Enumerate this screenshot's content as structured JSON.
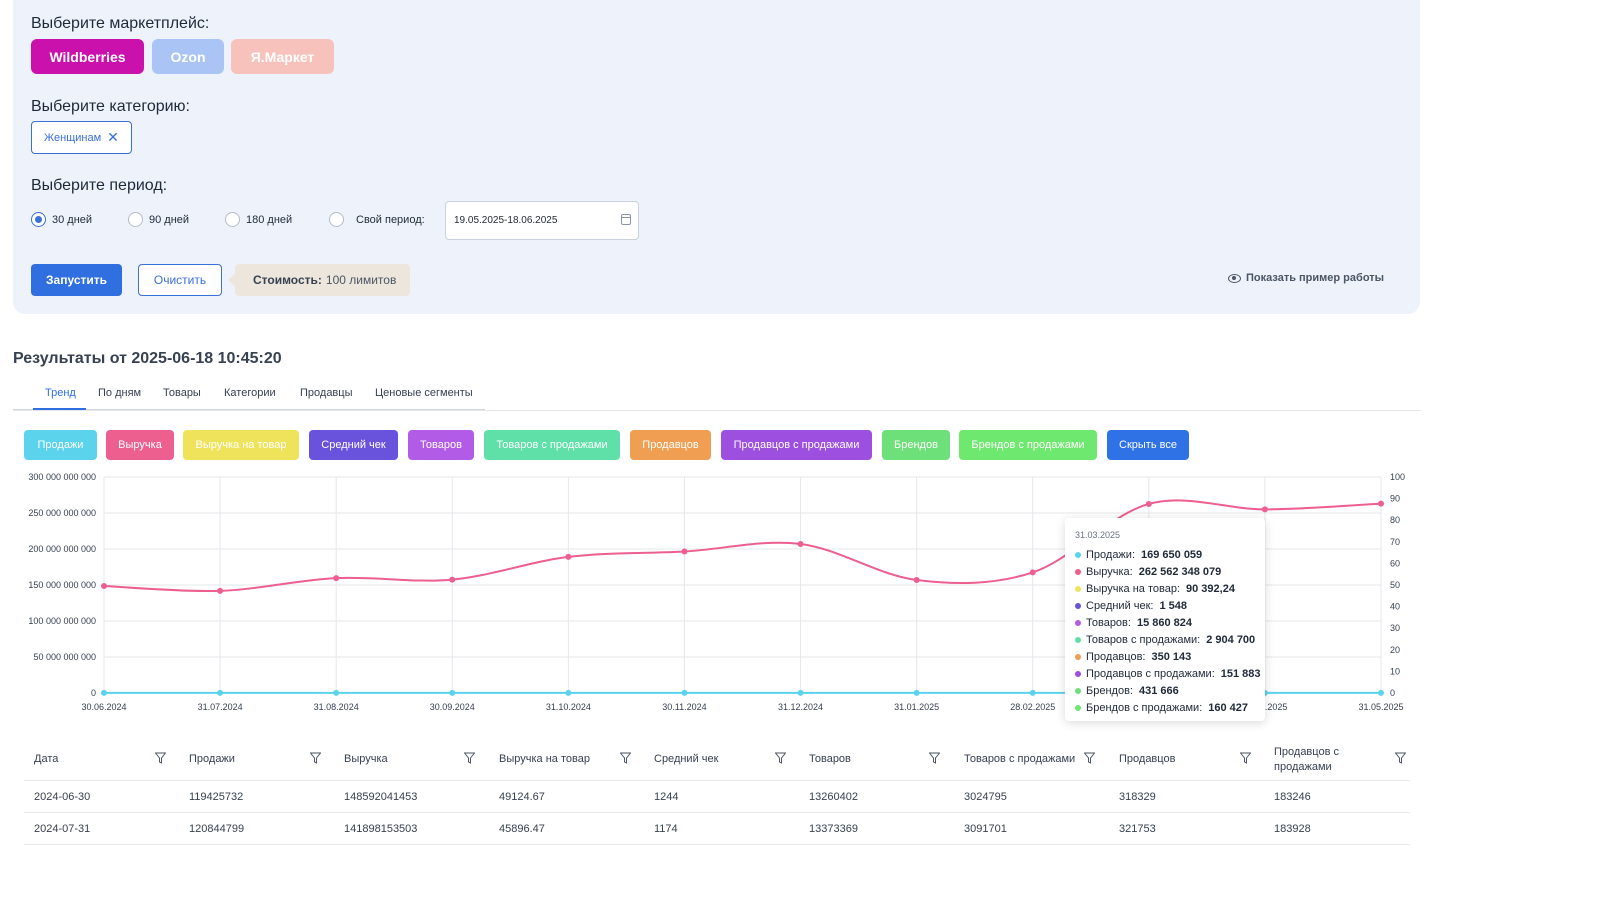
{
  "form": {
    "marketplace_label": "Выберите маркетплейс:",
    "marketplaces": [
      {
        "label": "Wildberries",
        "color": "#cb11ab"
      },
      {
        "label": "Ozon",
        "color": "#a9c4f5"
      },
      {
        "label": "Я.Маркет",
        "color": "#f7c2bc"
      }
    ],
    "category_label": "Выберите категорию:",
    "category_chip": "Женщинам",
    "period_label": "Выберите период:",
    "periods": [
      "30 дней",
      "90 дней",
      "180 дней",
      "Свой период:"
    ],
    "period_selected": "30 дней",
    "date_value": "19.05.2025-18.06.2025",
    "run_label": "Запустить",
    "clear_label": "Очистить",
    "cost_label": "Стоимость:",
    "cost_value": "100 лимитов",
    "example_label": "Показать пример работы"
  },
  "results": {
    "title": "Результаты от 2025-06-18 10:45:20",
    "tabs": [
      "Тренд",
      "По дням",
      "Товары",
      "Категории",
      "Продавцы",
      "Ценовые сегменты"
    ],
    "active_tab": "Тренд"
  },
  "series_buttons": [
    {
      "label": "Продажи",
      "color": "#5bd3ec"
    },
    {
      "label": "Выручка",
      "color": "#ec5f8f"
    },
    {
      "label": "Выручка на товар",
      "color": "#f0e35c"
    },
    {
      "label": "Средний чек",
      "color": "#6a53dc"
    },
    {
      "label": "Товаров",
      "color": "#b15be6"
    },
    {
      "label": "Товаров с продажами",
      "color": "#5fe0a8"
    },
    {
      "label": "Продавцов",
      "color": "#ef9e52"
    },
    {
      "label": "Продавцов с продажами",
      "color": "#9d4fe0"
    },
    {
      "label": "Брендов",
      "color": "#6ee07a"
    },
    {
      "label": "Брендов с продажами",
      "color": "#6ee86e"
    },
    {
      "label": "Скрыть все",
      "color": "#2f72e6"
    }
  ],
  "chart_data": {
    "type": "line",
    "x": [
      "30.06.2024",
      "31.07.2024",
      "31.08.2024",
      "30.09.2024",
      "31.10.2024",
      "30.11.2024",
      "31.12.2024",
      "31.01.2025",
      "28.02.2025",
      "31.03.2025",
      "30.04.2025",
      "31.05.2025"
    ],
    "y_left_ticks": [
      "300 000 000 000",
      "250 000 000 000",
      "200 000 000 000",
      "150 000 000 000",
      "100 000 000 000",
      "50 000 000 000",
      "0"
    ],
    "y_right_ticks": [
      "100",
      "90",
      "80",
      "70",
      "60",
      "50",
      "40",
      "30",
      "20",
      "10",
      "0"
    ],
    "ylim_left": [
      0,
      300000000000
    ],
    "ylim_right": [
      0,
      100
    ],
    "grid": true,
    "series": [
      {
        "name": "Выручка",
        "color": "#ec5f8f",
        "values": [
          148592041453,
          141898153503,
          159600000000,
          157500000000,
          189000000000,
          196500000000,
          207000000000,
          157000000000,
          167500000000,
          262562348079,
          255000000000,
          263000000000
        ]
      },
      {
        "name": "Продажи",
        "color": "#5bd3ec",
        "values": [
          119425732,
          120844799,
          121000000,
          122000000,
          140000000,
          150000000,
          160000000,
          130000000,
          140000000,
          169650059,
          165000000,
          168000000
        ]
      }
    ],
    "tooltip": {
      "date": "31.03.2025",
      "rows": [
        {
          "label": "Продажи:",
          "value": "169 650 059",
          "color": "#5bd3ec"
        },
        {
          "label": "Выручка:",
          "value": "262 562 348 079",
          "color": "#ec5f8f"
        },
        {
          "label": "Выручка на товар:",
          "value": "90 392,24",
          "color": "#f0e35c"
        },
        {
          "label": "Средний чек:",
          "value": "1 548",
          "color": "#6a53dc"
        },
        {
          "label": "Товаров:",
          "value": "15 860 824",
          "color": "#b15be6"
        },
        {
          "label": "Товаров с продажами:",
          "value": "2 904 700",
          "color": "#5fe0a8"
        },
        {
          "label": "Продавцов:",
          "value": "350 143",
          "color": "#ef9e52"
        },
        {
          "label": "Продавцов с продажами:",
          "value": "151 883",
          "color": "#9d4fe0"
        },
        {
          "label": "Брендов:",
          "value": "431 666",
          "color": "#6ee07a"
        },
        {
          "label": "Брендов с продажами:",
          "value": "160 427",
          "color": "#6ee86e"
        }
      ]
    }
  },
  "table": {
    "headers": [
      "Дата",
      "Продажи",
      "Выручка",
      "Выручка на товар",
      "Средний чек",
      "Товаров",
      "Товаров с продажами",
      "Продавцов",
      "Продавцов с продажами"
    ],
    "rows": [
      [
        "2024-06-30",
        "119425732",
        "148592041453",
        "49124.67",
        "1244",
        "13260402",
        "3024795",
        "318329",
        "183246"
      ],
      [
        "2024-07-31",
        "120844799",
        "141898153503",
        "45896.47",
        "1174",
        "13373369",
        "3091701",
        "321753",
        "183928"
      ]
    ]
  }
}
